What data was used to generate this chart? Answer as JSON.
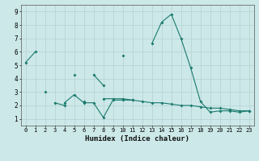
{
  "xlabel": "Humidex (Indice chaleur)",
  "x": [
    0,
    1,
    2,
    3,
    4,
    5,
    6,
    7,
    8,
    9,
    10,
    11,
    12,
    13,
    14,
    15,
    16,
    17,
    18,
    19,
    20,
    21,
    22,
    23
  ],
  "series1": [
    5.2,
    6.0,
    null,
    null,
    null,
    4.3,
    null,
    4.3,
    3.5,
    null,
    5.7,
    null,
    null,
    6.6,
    8.2,
    8.8,
    7.0,
    4.8,
    2.3,
    1.5,
    1.6,
    1.6,
    1.5,
    1.6
  ],
  "series2": [
    null,
    null,
    3.0,
    null,
    2.2,
    2.8,
    2.2,
    2.2,
    1.1,
    2.4,
    2.4,
    2.4,
    null,
    null,
    null,
    null,
    null,
    null,
    null,
    null,
    null,
    null,
    null,
    null
  ],
  "series3": [
    null,
    null,
    null,
    2.2,
    2.0,
    null,
    2.3,
    null,
    2.5,
    2.5,
    2.5,
    2.4,
    2.3,
    2.2,
    2.2,
    2.1,
    2.0,
    2.0,
    1.9,
    1.8,
    1.8,
    1.7,
    1.6,
    1.6
  ],
  "line_color": "#1a7a6e",
  "bg_color": "#cce8e8",
  "grid_color": "#b8d4d4",
  "ylim": [
    0.5,
    9.5
  ],
  "xlim": [
    -0.5,
    23.5
  ],
  "yticks": [
    1,
    2,
    3,
    4,
    5,
    6,
    7,
    8,
    9
  ],
  "xticks": [
    0,
    1,
    2,
    3,
    4,
    5,
    6,
    7,
    8,
    9,
    10,
    11,
    12,
    13,
    14,
    15,
    16,
    17,
    18,
    19,
    20,
    21,
    22,
    23
  ]
}
